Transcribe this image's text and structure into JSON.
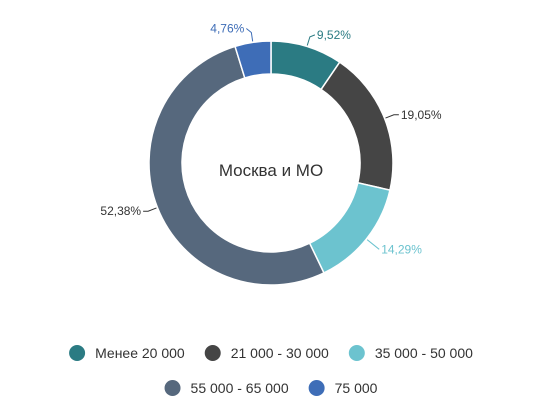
{
  "chart_data": {
    "type": "pie",
    "donut": true,
    "center_label": "Москва и МО",
    "categories": [
      "Менее 20 000",
      "21 000 - 30 000",
      "35 000 - 50 000",
      "55 000 - 65 000",
      "75 000"
    ],
    "values": [
      9.52,
      19.05,
      14.29,
      52.38,
      4.76
    ],
    "data_labels": [
      "9,52%",
      "19,05%",
      "14,29%",
      "52,38%",
      "4,76%"
    ],
    "colors": [
      "#2b7b83",
      "#454545",
      "#6cc3cf",
      "#56687d",
      "#3e6db7"
    ],
    "label_colors": [
      "#2b7b83",
      "#333333",
      "#6cc3cf",
      "#333333",
      "#3e6db7"
    ],
    "legend": {
      "position": "bottom",
      "items": [
        {
          "label": "Менее 20 000",
          "color": "#2b7b83"
        },
        {
          "label": "21 000 - 30 000",
          "color": "#454545"
        },
        {
          "label": "35 000 - 50 000",
          "color": "#6cc3cf"
        },
        {
          "label": "55 000 - 65 000",
          "color": "#56687d"
        },
        {
          "label": "75 000",
          "color": "#3e6db7"
        }
      ]
    }
  }
}
